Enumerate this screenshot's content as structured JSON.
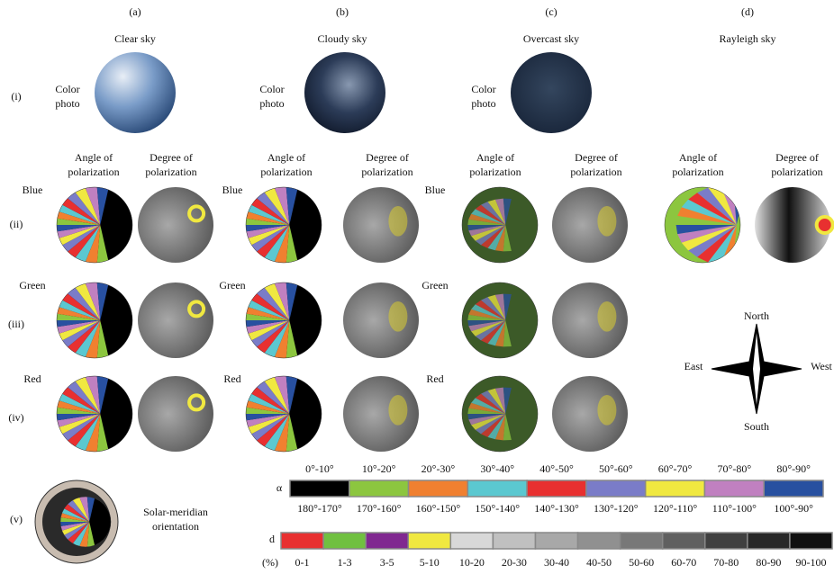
{
  "columns": [
    {
      "letter": "(a)",
      "title": "Clear sky"
    },
    {
      "letter": "(b)",
      "title": "Cloudy sky"
    },
    {
      "letter": "(c)",
      "title": "Overcast sky"
    },
    {
      "letter": "(d)",
      "title": "Rayleigh sky"
    }
  ],
  "rows": [
    "(i)",
    "(ii)",
    "(iii)",
    "(iv)",
    "(v)"
  ],
  "color_photo": [
    "Color",
    "photo"
  ],
  "angle_header": [
    "Angle of",
    "polarization"
  ],
  "degree_header": [
    "Degree of",
    "polarization"
  ],
  "channels": [
    "Blue",
    "Green",
    "Red"
  ],
  "compass": {
    "north": "North",
    "east": "East",
    "west": "West",
    "south": "South"
  },
  "solar_meridian": [
    "Solar-meridian",
    "orientation"
  ],
  "alpha_legend": {
    "symbol": "α",
    "top_labels": [
      "0°-10°",
      "10°-20°",
      "20°-30°",
      "30°-40°",
      "40°-50°",
      "50°-60°",
      "60°-70°",
      "70°-80°",
      "80°-90°"
    ],
    "bottom_labels": [
      "180°-170°",
      "170°-160°",
      "160°-150°",
      "150°-140°",
      "140°-130°",
      "130°-120°",
      "120°-110°",
      "110°-100°",
      "100°-90°"
    ],
    "colors": [
      "#000000",
      "#8cc63f",
      "#f08030",
      "#5bc8d0",
      "#e83030",
      "#7a7cc8",
      "#f0e840",
      "#c080c0",
      "#2850a0"
    ]
  },
  "d_legend": {
    "symbol": "d",
    "unit": "(%)",
    "labels": [
      "0-1",
      "1-3",
      "3-5",
      "5-10",
      "10-20",
      "20-30",
      "30-40",
      "40-50",
      "50-60",
      "60-70",
      "70-80",
      "80-90",
      "90-100"
    ],
    "colors": [
      "#e83030",
      "#70c040",
      "#802890",
      "#f0e840",
      "#d8d8d8",
      "#c0c0c0",
      "#a8a8a8",
      "#909090",
      "#787878",
      "#606060",
      "#404040",
      "#282828",
      "#101010"
    ]
  }
}
